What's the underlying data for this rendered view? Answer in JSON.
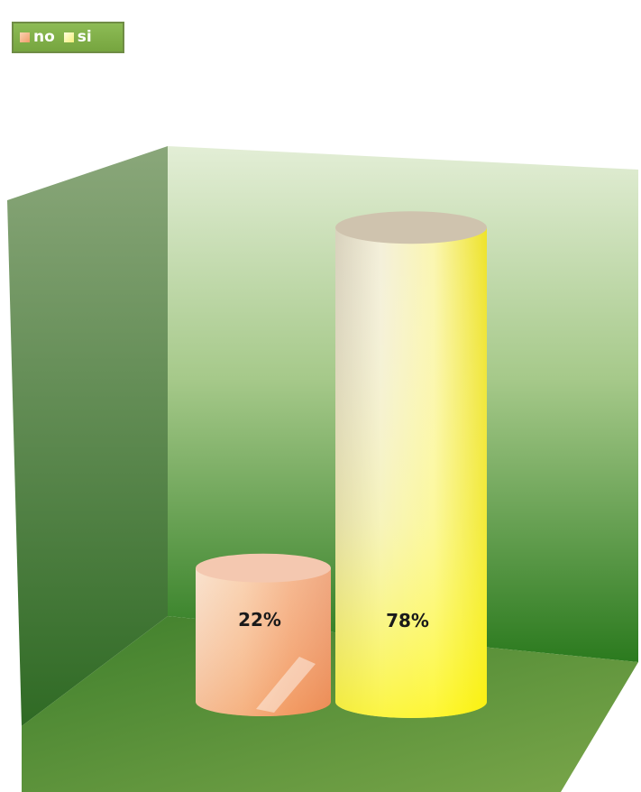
{
  "chart_data": {
    "type": "bar",
    "subtype": "3d-cylinder",
    "categories": [
      "no",
      "si"
    ],
    "values": [
      22,
      78
    ],
    "data_labels": [
      "22%",
      "78%"
    ],
    "value_unit": "%",
    "ylim": [
      0,
      100
    ],
    "grid": false,
    "legend_position": "top-left",
    "legend": [
      "no",
      "si"
    ],
    "colors": {
      "no": {
        "top": "#f4c8b0",
        "light": "#fbe2cc",
        "mid": "#f3a978",
        "dark": "#e98c58"
      },
      "si": {
        "top": "#cfc3ae",
        "light": "#fbf7e2",
        "mid": "#fffb5a",
        "dark": "#f3ea10"
      },
      "wall_light": "#e5f0d8",
      "wall_dark": "#2e7d21",
      "floor": "#6e9a46",
      "legend_bg": "#85b44e"
    }
  }
}
